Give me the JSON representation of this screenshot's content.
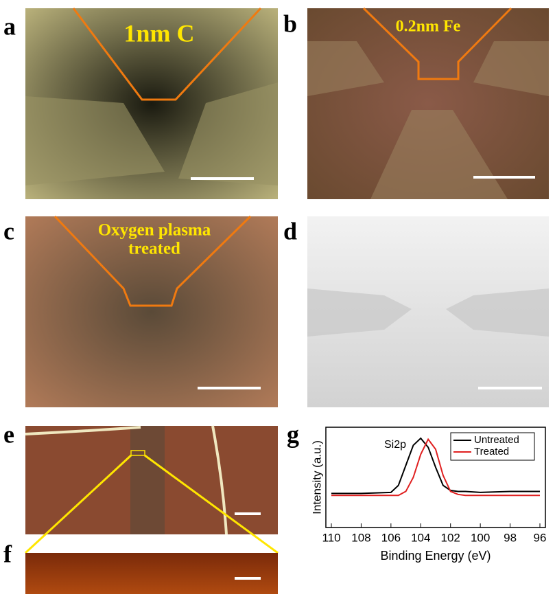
{
  "panel_labels": [
    "a",
    "b",
    "c",
    "d",
    "e",
    "f",
    "g"
  ],
  "image_texts": [
    "1nm C",
    "0.2nm Fe",
    "Oxygen plasma",
    "treated"
  ],
  "chart_data": {
    "type": "line",
    "xlabel": "Binding Energy (eV)",
    "ylabel": "Intensity (a.u.)",
    "annotation": "Si2p",
    "x": [
      110,
      108,
      106,
      105.5,
      105,
      104.5,
      104,
      103.5,
      103,
      102.5,
      102,
      101.5,
      101,
      100,
      98,
      96
    ],
    "series": [
      {
        "name": "Untreated",
        "color": "#000000",
        "values": [
          0.34,
          0.34,
          0.35,
          0.42,
          0.62,
          0.82,
          0.89,
          0.8,
          0.6,
          0.42,
          0.37,
          0.36,
          0.36,
          0.35,
          0.36,
          0.36
        ]
      },
      {
        "name": "Treated",
        "color": "#e02020",
        "values": [
          0.32,
          0.32,
          0.32,
          0.32,
          0.36,
          0.5,
          0.73,
          0.88,
          0.78,
          0.52,
          0.36,
          0.33,
          0.32,
          0.32,
          0.32,
          0.32
        ]
      }
    ],
    "xlim": [
      110,
      96
    ],
    "xticks": [
      110,
      108,
      106,
      104,
      102,
      100,
      98,
      96
    ],
    "ylim": [
      0,
      1
    ],
    "legend": "upper right"
  }
}
